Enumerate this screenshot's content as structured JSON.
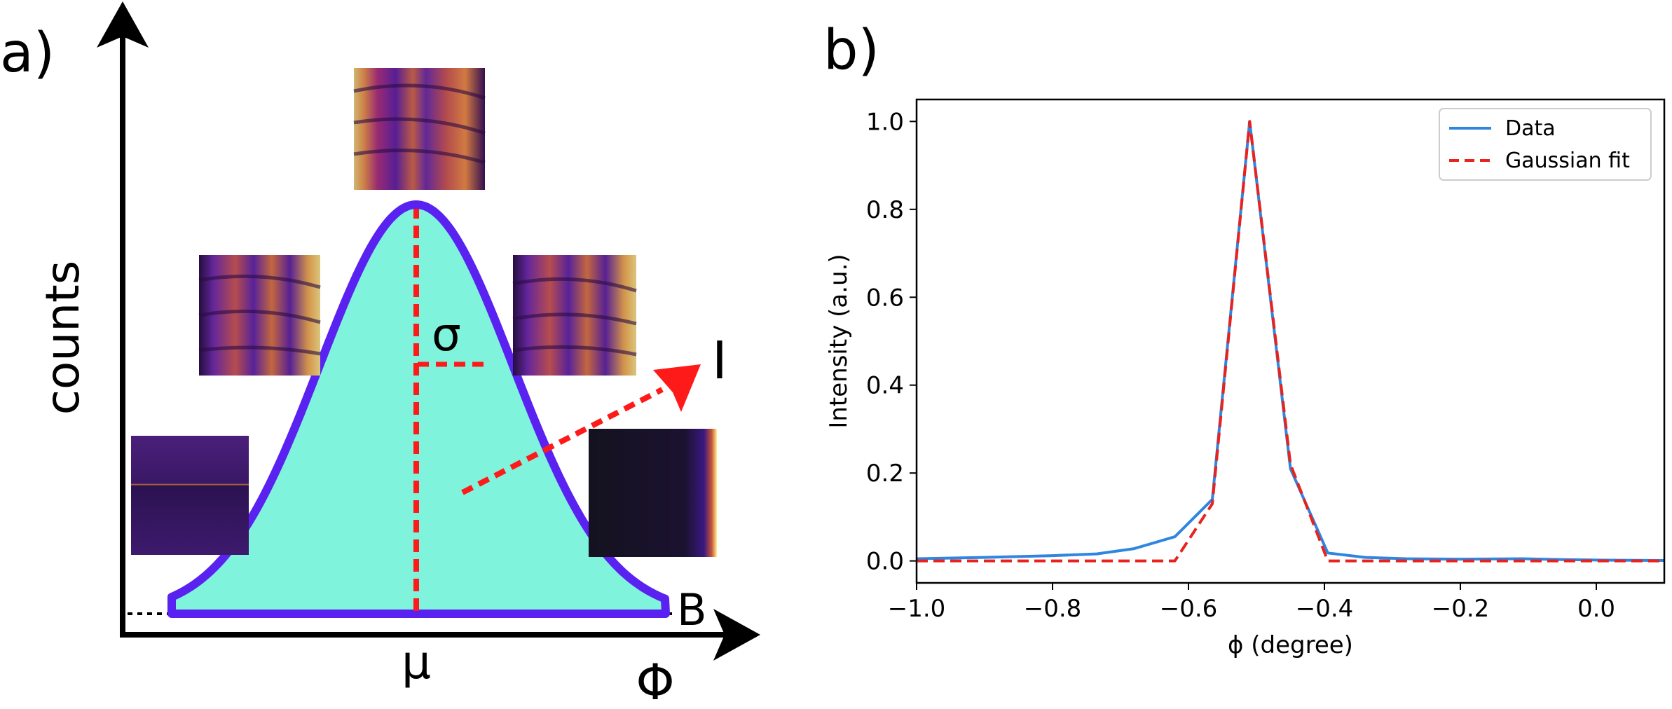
{
  "panel_a": {
    "label": "a)",
    "y_axis_label": "counts",
    "x_axis_label": "Φ",
    "mean_label": "μ",
    "sigma_label": "σ",
    "intensity_label": "I",
    "background_label": "B",
    "colors": {
      "fill": "#7ff3dc",
      "outline": "#5a22f0",
      "marker": "#ff1a1a"
    }
  },
  "chart_data": {
    "type": "line",
    "label": "b)",
    "xlabel": "ϕ (degree)",
    "ylabel": "Intensity (a.u.)",
    "xlim": [
      -1.0,
      0.1
    ],
    "ylim": [
      -0.05,
      1.05
    ],
    "xticks": [
      {
        "value": -1.0,
        "label": "−1.0"
      },
      {
        "value": -0.8,
        "label": "−0.8"
      },
      {
        "value": -0.6,
        "label": "−0.6"
      },
      {
        "value": -0.4,
        "label": "−0.4"
      },
      {
        "value": -0.2,
        "label": "−0.2"
      },
      {
        "value": 0.0,
        "label": "0.0"
      }
    ],
    "yticks": [
      {
        "value": 0.0,
        "label": "0.0"
      },
      {
        "value": 0.2,
        "label": "0.2"
      },
      {
        "value": 0.4,
        "label": "0.4"
      },
      {
        "value": 0.6,
        "label": "0.6"
      },
      {
        "value": 0.8,
        "label": "0.8"
      },
      {
        "value": 1.0,
        "label": "1.0"
      }
    ],
    "legend_position": "top-right",
    "series": [
      {
        "name": "Data",
        "color": "#2f86e0",
        "style": "solid",
        "x": [
          -1.0,
          -0.9,
          -0.8,
          -0.735,
          -0.68,
          -0.62,
          -0.565,
          -0.51,
          -0.45,
          -0.395,
          -0.34,
          -0.28,
          -0.2,
          -0.11,
          -0.05,
          0.0,
          0.1
        ],
        "y": [
          0.005,
          0.008,
          0.012,
          0.016,
          0.028,
          0.055,
          0.14,
          1.0,
          0.21,
          0.018,
          0.008,
          0.005,
          0.004,
          0.005,
          0.003,
          0.002,
          0.001
        ]
      },
      {
        "name": "Gaussian fit",
        "color": "#e8221e",
        "style": "dashed",
        "x": [
          -1.0,
          -0.62,
          -0.565,
          -0.51,
          -0.45,
          -0.395,
          0.1
        ],
        "y": [
          0.0,
          0.0,
          0.13,
          1.0,
          0.22,
          0.0,
          0.0
        ]
      }
    ]
  }
}
